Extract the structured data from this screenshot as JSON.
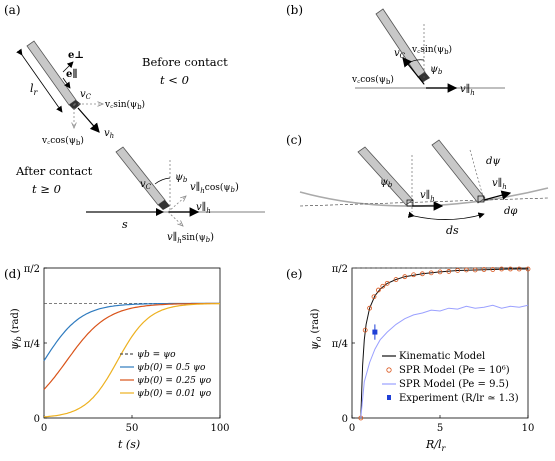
{
  "panels": {
    "a": {
      "label": "(a)",
      "before": [
        "Before contact",
        "t < 0"
      ],
      "after": [
        "After contact",
        "t ≥ 0"
      ],
      "vectors": {
        "e_perp": "e⊥",
        "e_par": "e∥",
        "lr": "l",
        "lr_sub": "r",
        "vc": "v",
        "vc_sub": "C",
        "vh": "v",
        "vh_sub": "h",
        "vc_sin": "v꜀sin(ψ",
        "vc_cos": "v꜀cos(ψ",
        "psi_b": "ψ",
        "psi_b_sub": "b",
        "s": "s",
        "vh_par_cos": "v∥",
        "vh_par_sin": "v∥",
        "cos_label": "cos(ψ",
        "sin_label": "sin(ψ",
        "h_sub": "h",
        "paren_b": "b)"
      }
    },
    "b": {
      "label": "(b)",
      "vc_sin": "v꜀sin(ψ",
      "vc_cos": "v꜀cos(ψ",
      "vc": "v",
      "psi_b": "ψ",
      "vh_par": "v∥",
      "h_sub": "h",
      "paren_b": "b)",
      "b_sub": "b",
      "c_sub": "C"
    },
    "c": {
      "label": "(c)",
      "psi_b": "ψ",
      "b_sub": "b",
      "dpsi": "dψ",
      "vh_par": "v∥",
      "h_sub": "h",
      "ds": "ds",
      "dphi": "dφ"
    },
    "d": {
      "label": "(d)",
      "y_ticks": [
        "π/2",
        "π/4",
        "0"
      ],
      "x_ticks": [
        "0",
        "50",
        "100"
      ],
      "ylabel": "ψ",
      "ylabel_sub": "b",
      "ylabel_unit": "(rad)",
      "xlabel": "t (s)",
      "legend": [
        "ψb = ψo",
        "ψb(0) = 0.5 ψo",
        "ψb(0) = 0.25 ψo",
        "ψb(0) = 0.01 ψo"
      ]
    },
    "e": {
      "label": "(e)",
      "y_ticks": [
        "π/2",
        "π/4",
        "0"
      ],
      "x_ticks": [
        "0",
        "5",
        "10"
      ],
      "ylabel": "ψ",
      "ylabel_sub": "o",
      "ylabel_unit": "(rad)",
      "xlabel": "R/l",
      "xlabel_sub": "r",
      "legend": [
        "Kinematic Model",
        "SPR Model (Pe = 10⁶)",
        "SPR Model (Pe = 9.5)",
        "Experiment (R/lr ≃ 1.3)"
      ]
    }
  },
  "chart_data": [
    {
      "type": "line",
      "panel": "d",
      "xlim": [
        0,
        100
      ],
      "ylim": [
        0,
        1.5708
      ],
      "asymptote": 1.2,
      "series": [
        {
          "name": "ψb = ψo",
          "color": "#555555",
          "dashed": true,
          "y0": 1.2,
          "k": 0
        },
        {
          "name": "ψb(0) = 0.5 ψo",
          "color": "#2f7bbf",
          "y0": 0.6,
          "k": 0.095
        },
        {
          "name": "ψb(0) = 0.25 ψo",
          "color": "#d95319",
          "y0": 0.3,
          "k": 0.085
        },
        {
          "name": "ψb(0) = 0.01 ψo",
          "color": "#edb120",
          "y0": 0.012,
          "k": 0.11
        }
      ]
    },
    {
      "type": "line",
      "panel": "e",
      "xlim": [
        0,
        10
      ],
      "ylim": [
        0,
        1.5708
      ],
      "series": [
        {
          "name": "Kinematic Model",
          "color": "#111111",
          "x": [
            0.5,
            0.6,
            0.7,
            0.8,
            1.0,
            1.3,
            1.6,
            2,
            2.5,
            3,
            4,
            5,
            6,
            7,
            8,
            9,
            10
          ],
          "y": [
            0.0,
            0.55,
            0.82,
            0.98,
            1.15,
            1.28,
            1.35,
            1.41,
            1.45,
            1.48,
            1.51,
            1.53,
            1.545,
            1.55,
            1.555,
            1.56,
            1.56
          ]
        },
        {
          "name": "SPR Model (Pe = 10⁶)",
          "color": "#d95319",
          "marker": "circle",
          "x": [
            0.5,
            0.75,
            1.0,
            1.25,
            1.5,
            1.75,
            2,
            2.5,
            3,
            3.5,
            4,
            4.5,
            5,
            5.5,
            6,
            6.5,
            7,
            7.5,
            8,
            8.5,
            9,
            9.5,
            10
          ],
          "y": [
            0.0,
            0.92,
            1.15,
            1.27,
            1.34,
            1.38,
            1.41,
            1.45,
            1.48,
            1.5,
            1.51,
            1.52,
            1.53,
            1.535,
            1.545,
            1.55,
            1.55,
            1.555,
            1.555,
            1.56,
            1.56,
            1.56,
            1.56
          ]
        },
        {
          "name": "SPR Model (Pe = 9.5)",
          "color": "#9aa0ff",
          "x": [
            0.5,
            0.7,
            1.0,
            1.3,
            1.6,
            2,
            2.5,
            3,
            3.5,
            4,
            4.5,
            5,
            5.5,
            6,
            6.5,
            7,
            7.5,
            8,
            8.5,
            9,
            9.5,
            10
          ],
          "y": [
            0.0,
            0.38,
            0.58,
            0.72,
            0.82,
            0.9,
            0.98,
            1.04,
            1.08,
            1.1,
            1.13,
            1.12,
            1.15,
            1.14,
            1.17,
            1.15,
            1.16,
            1.18,
            1.15,
            1.17,
            1.16,
            1.18
          ]
        },
        {
          "name": "Experiment (R/lr ≃ 1.3)",
          "color": "#1f3fd6",
          "marker": "square",
          "x": [
            1.3
          ],
          "y": [
            0.9
          ],
          "yerr": [
            0.08
          ]
        }
      ]
    }
  ]
}
